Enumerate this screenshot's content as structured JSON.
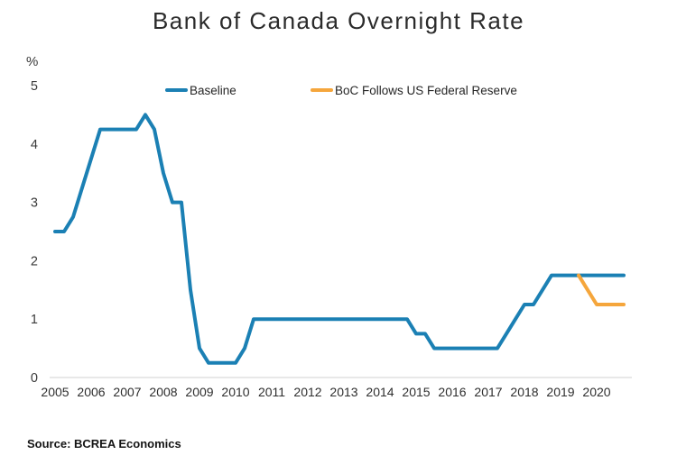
{
  "title": "Bank of Canada Overnight Rate",
  "source": "Source: BCREA Economics",
  "chart_data": {
    "type": "line",
    "title": "Bank of Canada Overnight Rate",
    "ylabel": "%",
    "xlabel": "",
    "ylim": [
      0,
      5
    ],
    "y_ticks": [
      0,
      1,
      2,
      3,
      4,
      5
    ],
    "x_ticks": [
      2005,
      2006,
      2007,
      2008,
      2009,
      2010,
      2011,
      2012,
      2013,
      2014,
      2015,
      2016,
      2017,
      2018,
      2019,
      2020
    ],
    "grid": false,
    "legend_position": "top",
    "axis_line_color": "#d9d9d9",
    "tick_label_color": "#3a3a3a",
    "series": [
      {
        "name": "Baseline",
        "color": "#1b80b4",
        "line_width": 4,
        "points": [
          [
            2005.0,
            2.5
          ],
          [
            2005.25,
            2.5
          ],
          [
            2005.5,
            2.75
          ],
          [
            2005.75,
            3.25
          ],
          [
            2006.0,
            3.75
          ],
          [
            2006.25,
            4.25
          ],
          [
            2006.5,
            4.25
          ],
          [
            2006.75,
            4.25
          ],
          [
            2007.0,
            4.25
          ],
          [
            2007.25,
            4.25
          ],
          [
            2007.5,
            4.5
          ],
          [
            2007.75,
            4.25
          ],
          [
            2008.0,
            3.5
          ],
          [
            2008.25,
            3.0
          ],
          [
            2008.5,
            3.0
          ],
          [
            2008.75,
            1.5
          ],
          [
            2009.0,
            0.5
          ],
          [
            2009.25,
            0.25
          ],
          [
            2009.5,
            0.25
          ],
          [
            2009.75,
            0.25
          ],
          [
            2010.0,
            0.25
          ],
          [
            2010.25,
            0.5
          ],
          [
            2010.5,
            1.0
          ],
          [
            2010.75,
            1.0
          ],
          [
            2011.0,
            1.0
          ],
          [
            2011.25,
            1.0
          ],
          [
            2011.5,
            1.0
          ],
          [
            2011.75,
            1.0
          ],
          [
            2012.0,
            1.0
          ],
          [
            2012.25,
            1.0
          ],
          [
            2012.5,
            1.0
          ],
          [
            2012.75,
            1.0
          ],
          [
            2013.0,
            1.0
          ],
          [
            2013.25,
            1.0
          ],
          [
            2013.5,
            1.0
          ],
          [
            2013.75,
            1.0
          ],
          [
            2014.0,
            1.0
          ],
          [
            2014.25,
            1.0
          ],
          [
            2014.5,
            1.0
          ],
          [
            2014.75,
            1.0
          ],
          [
            2015.0,
            0.75
          ],
          [
            2015.25,
            0.75
          ],
          [
            2015.5,
            0.5
          ],
          [
            2015.75,
            0.5
          ],
          [
            2016.0,
            0.5
          ],
          [
            2016.25,
            0.5
          ],
          [
            2016.5,
            0.5
          ],
          [
            2016.75,
            0.5
          ],
          [
            2017.0,
            0.5
          ],
          [
            2017.25,
            0.5
          ],
          [
            2017.5,
            0.75
          ],
          [
            2017.75,
            1.0
          ],
          [
            2018.0,
            1.25
          ],
          [
            2018.25,
            1.25
          ],
          [
            2018.5,
            1.5
          ],
          [
            2018.75,
            1.75
          ],
          [
            2019.0,
            1.75
          ],
          [
            2019.25,
            1.75
          ],
          [
            2019.5,
            1.75
          ],
          [
            2019.75,
            1.75
          ],
          [
            2020.0,
            1.75
          ],
          [
            2020.25,
            1.75
          ],
          [
            2020.5,
            1.75
          ],
          [
            2020.75,
            1.75
          ]
        ]
      },
      {
        "name": "BoC Follows US Federal Reserve",
        "color": "#f5a63c",
        "line_width": 4,
        "points": [
          [
            2019.5,
            1.75
          ],
          [
            2019.75,
            1.5
          ],
          [
            2020.0,
            1.25
          ],
          [
            2020.25,
            1.25
          ],
          [
            2020.5,
            1.25
          ],
          [
            2020.75,
            1.25
          ]
        ]
      }
    ]
  }
}
